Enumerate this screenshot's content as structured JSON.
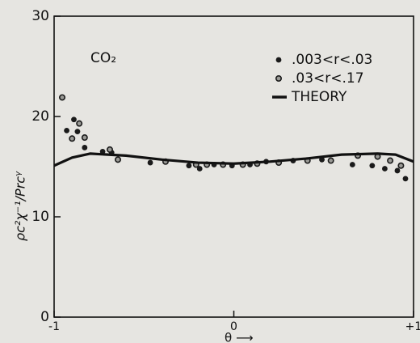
{
  "chart_data": {
    "type": "scatter",
    "annotation": "CO₂",
    "xlabel": "θ ⟶",
    "ylabel": "ρc²χ⁻¹/Prcᵞ",
    "xlim": [
      -1,
      1
    ],
    "ylim": [
      0,
      30
    ],
    "xticks": [
      -1,
      0,
      {
        "value": 1,
        "label": "+1"
      }
    ],
    "yticks": [
      0,
      10,
      20,
      30
    ],
    "legend": "upper right",
    "series": [
      {
        "name": ".003<r<.03",
        "color": "#1a1a1a",
        "marker": "filled",
        "x": [
          -0.93,
          -0.89,
          -0.87,
          -0.83,
          -0.73,
          -0.68,
          -0.465,
          -0.25,
          -0.19,
          -0.11,
          -0.01,
          0.09,
          0.18,
          0.33,
          0.49,
          0.66,
          0.77,
          0.84,
          0.91,
          0.955
        ],
        "y": [
          18.6,
          19.7,
          18.5,
          16.9,
          16.5,
          16.4,
          15.4,
          15.1,
          14.8,
          15.2,
          15.1,
          15.2,
          15.5,
          15.6,
          15.7,
          15.2,
          15.1,
          14.8,
          14.6,
          13.8
        ]
      },
      {
        "name": ".03<r<.17",
        "color": "#1a1a1a",
        "marker": "open",
        "x": [
          -0.955,
          -0.9,
          -0.86,
          -0.83,
          -0.69,
          -0.645,
          -0.38,
          -0.21,
          -0.15,
          -0.06,
          0.05,
          0.13,
          0.25,
          0.41,
          0.54,
          0.69,
          0.8,
          0.87,
          0.93
        ],
        "y": [
          21.9,
          17.8,
          19.3,
          17.9,
          16.7,
          15.7,
          15.5,
          15.2,
          15.2,
          15.2,
          15.2,
          15.3,
          15.4,
          15.6,
          15.6,
          16.1,
          16.0,
          15.6,
          15.1
        ]
      },
      {
        "name": "THEORY",
        "color": "#111111",
        "marker": "line",
        "x": [
          -1,
          -0.9,
          -0.8,
          -0.6,
          -0.4,
          -0.2,
          0,
          0.2,
          0.4,
          0.6,
          0.8,
          0.9,
          1
        ],
        "y": [
          15.1,
          15.9,
          16.3,
          16.1,
          15.7,
          15.4,
          15.3,
          15.5,
          15.8,
          16.2,
          16.3,
          16.2,
          15.5
        ]
      }
    ]
  }
}
